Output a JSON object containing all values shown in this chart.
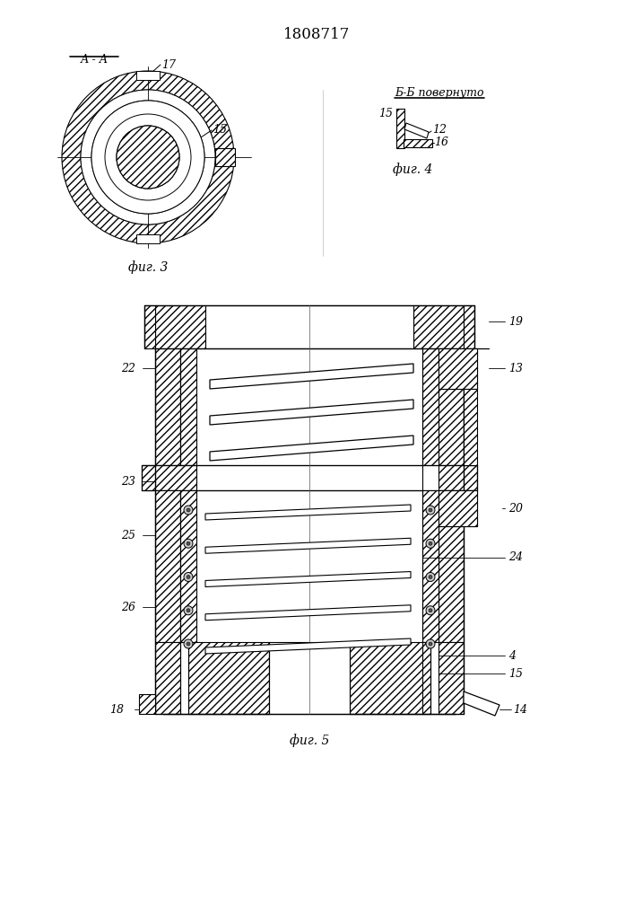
{
  "title": "1808717",
  "fig3_cap": "фиг. 3",
  "fig4_cap": "фиг. 4",
  "fig5_cap": "фиг. 5",
  "AA": "А - А",
  "BB": "Б-Б повернуто",
  "bg": "#ffffff"
}
